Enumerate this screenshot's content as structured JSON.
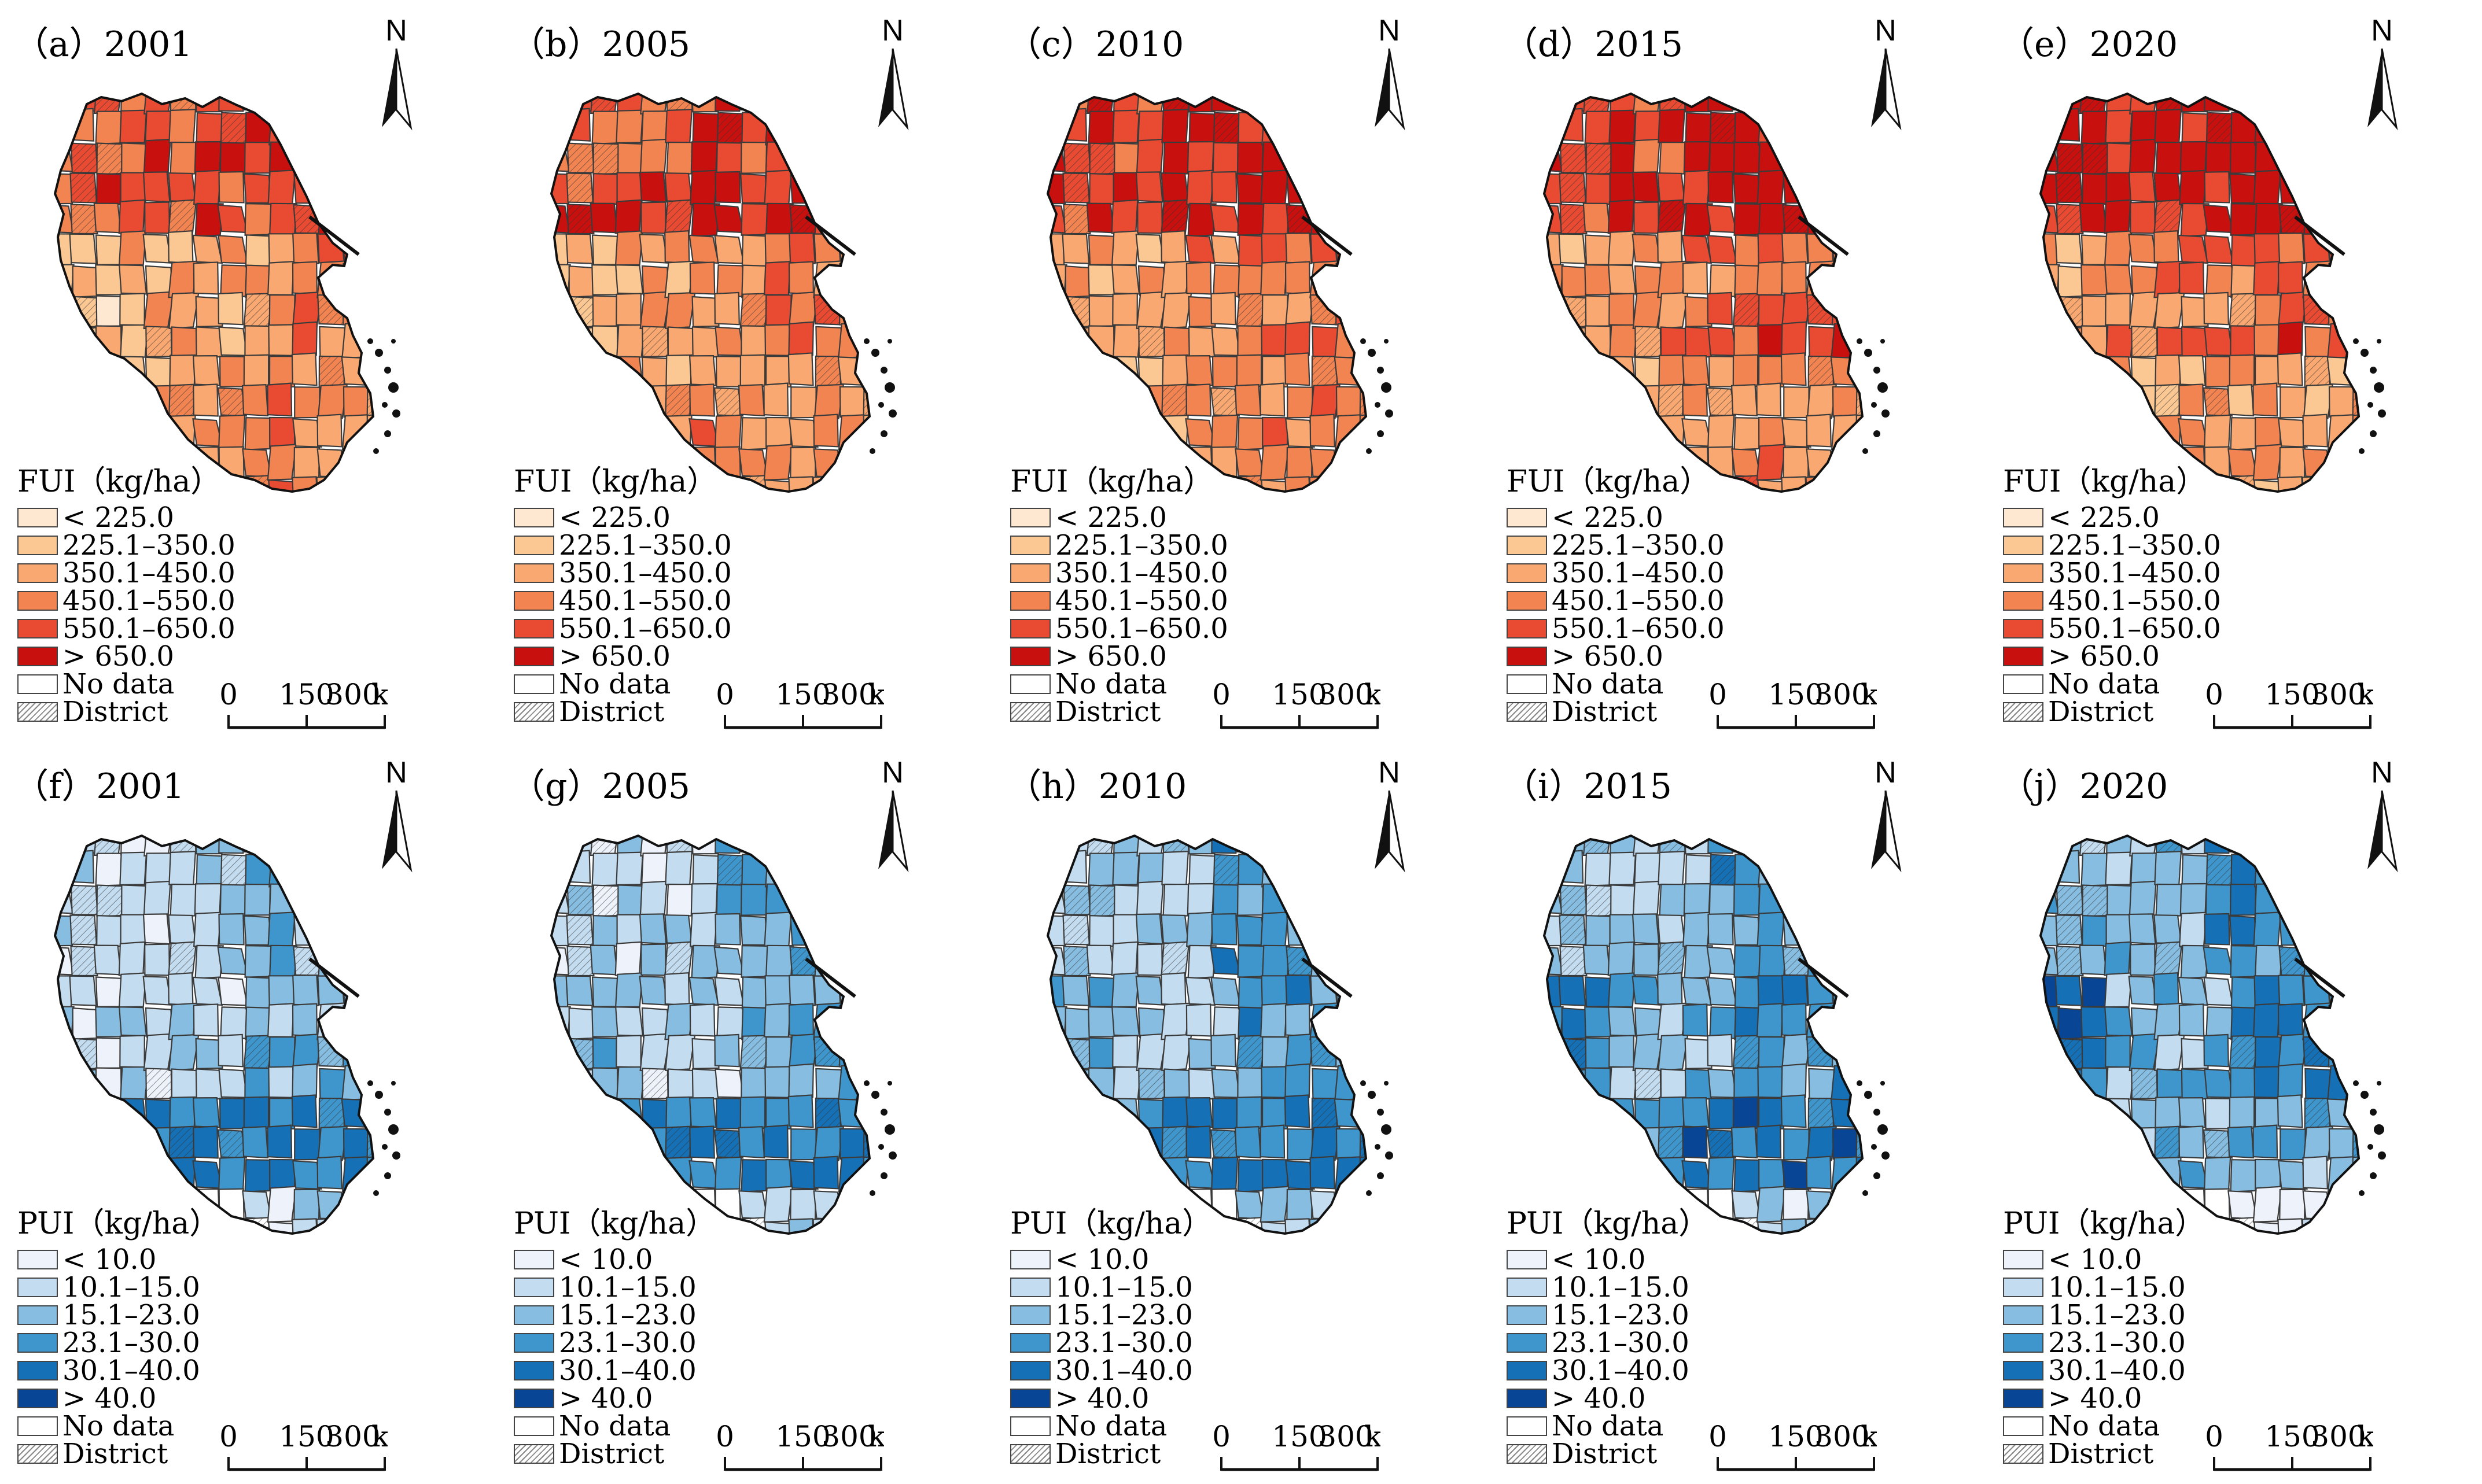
{
  "figure": {
    "fui_panels": [
      {
        "label": "（a）2001",
        "key": "fui2001"
      },
      {
        "label": "（b）2005",
        "key": "fui2005"
      },
      {
        "label": "（c）2010",
        "key": "fui2010"
      },
      {
        "label": "（d）2015",
        "key": "fui2015"
      },
      {
        "label": "（e）2020",
        "key": "fui2020"
      }
    ],
    "pui_panels": [
      {
        "label": "（f）2001",
        "key": "pui2001"
      },
      {
        "label": "（g）2005",
        "key": "pui2005"
      },
      {
        "label": "（h）2010",
        "key": "pui2010"
      },
      {
        "label": "（i）2015",
        "key": "pui2015"
      },
      {
        "label": "（j）2020",
        "key": "pui2020"
      }
    ]
  },
  "north_label": "N",
  "fui_legend": {
    "title": "FUI（kg/ha）",
    "classes": [
      {
        "label": "< 225.0",
        "color": "#fee8d2"
      },
      {
        "label": "225.1–350.0",
        "color": "#fbc893"
      },
      {
        "label": "350.1–450.0",
        "color": "#f8a870"
      },
      {
        "label": "450.1–550.0",
        "color": "#f28452"
      },
      {
        "label": "550.1–650.0",
        "color": "#e84a32"
      },
      {
        "label": "> 650.0",
        "color": "#c8100f"
      }
    ],
    "no_data": "No data",
    "district": "District"
  },
  "pui_legend": {
    "title": "PUI（kg/ha）",
    "classes": [
      {
        "label": "< 10.0",
        "color": "#eef3fb"
      },
      {
        "label": "10.1–15.0",
        "color": "#c4dcef"
      },
      {
        "label": "15.1–23.0",
        "color": "#86bde0"
      },
      {
        "label": "23.1–30.0",
        "color": "#3f96cc"
      },
      {
        "label": "30.1–40.0",
        "color": "#1670b5"
      },
      {
        "label": "> 40.0",
        "color": "#084594"
      }
    ],
    "no_data": "No data",
    "district": "District"
  },
  "scale": {
    "t0": "0",
    "t1": "150",
    "t2": "300",
    "unit": "km"
  }
}
